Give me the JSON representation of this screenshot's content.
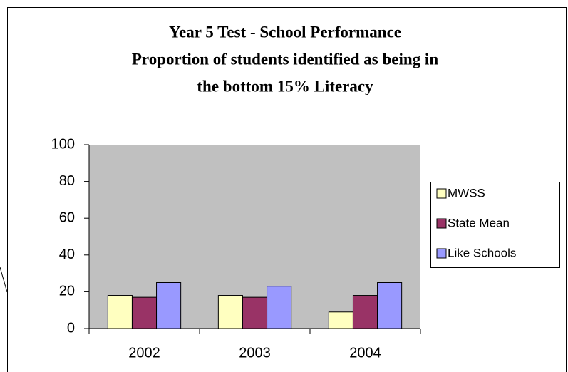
{
  "chart_data": {
    "type": "bar",
    "title": [
      "Year 5 Test - School Performance",
      "Proportion of students identified as being in",
      "the bottom 15% Literacy"
    ],
    "categories": [
      "2002",
      "2003",
      "2004"
    ],
    "series": [
      {
        "name": "MWSS",
        "color": "#ffffc0",
        "values": [
          18,
          18,
          9
        ]
      },
      {
        "name": "State Mean",
        "color": "#993366",
        "values": [
          17,
          17,
          18
        ]
      },
      {
        "name": "Like Schools",
        "color": "#9999ff",
        "values": [
          25,
          23,
          25
        ]
      }
    ],
    "ylim": [
      0,
      100
    ],
    "yticks": [
      0,
      20,
      40,
      60,
      80,
      100
    ],
    "grid": false,
    "legend": "right"
  }
}
